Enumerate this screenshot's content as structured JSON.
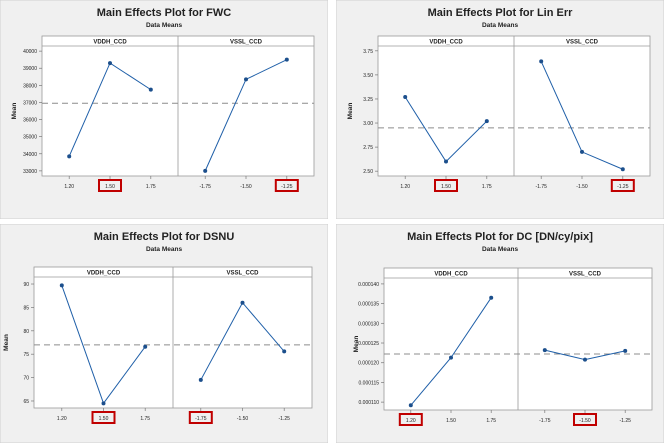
{
  "chart_data": [
    {
      "type": "line",
      "title": "Main Effects Plot for FWC",
      "subtitle": "Data Means",
      "ylabel": "Mean",
      "ylim": [
        32700,
        40300
      ],
      "yticks": [
        33000,
        34000,
        35000,
        36000,
        37000,
        38000,
        39000,
        40000
      ],
      "ytick_labels": [
        "33000",
        "34000",
        "35000",
        "36000",
        "37000",
        "38000",
        "39000",
        "40000"
      ],
      "reference_mean": 36950,
      "panels": [
        {
          "name": "VDDH_CCD",
          "categories": [
            "1.20",
            "1.50",
            "1.75"
          ],
          "values": [
            33850,
            39300,
            37750
          ],
          "highlighted": [
            "1.50"
          ]
        },
        {
          "name": "VSSL_CCD",
          "categories": [
            "-1.75",
            "-1.50",
            "-1.25"
          ],
          "values": [
            33000,
            38350,
            39500
          ],
          "highlighted": [
            "-1.25"
          ]
        }
      ]
    },
    {
      "type": "line",
      "title": "Main Effects Plot for Lin Err",
      "subtitle": "Data Means",
      "ylabel": "Mean",
      "ylim": [
        2.45,
        3.8
      ],
      "yticks": [
        2.5,
        2.75,
        3.0,
        3.25,
        3.5,
        3.75
      ],
      "ytick_labels": [
        "2.50",
        "2.75",
        "3.00",
        "3.25",
        "3.50",
        "3.75"
      ],
      "reference_mean": 2.95,
      "panels": [
        {
          "name": "VDDH_CCD",
          "categories": [
            "1.20",
            "1.50",
            "1.75"
          ],
          "values": [
            3.27,
            2.6,
            3.02
          ],
          "highlighted": [
            "1.50"
          ]
        },
        {
          "name": "VSSL_CCD",
          "categories": [
            "-1.75",
            "-1.50",
            "-1.25"
          ],
          "values": [
            3.64,
            2.7,
            2.52
          ],
          "highlighted": [
            "-1.25"
          ]
        }
      ]
    },
    {
      "type": "line",
      "title": "Main Effects Plot for DSNU",
      "subtitle": "Data Means",
      "ylabel": "Mean",
      "ylim": [
        63.5,
        91.5
      ],
      "yticks": [
        65,
        70,
        75,
        80,
        85,
        90
      ],
      "ytick_labels": [
        "65",
        "70",
        "75",
        "80",
        "85",
        "90"
      ],
      "reference_mean": 77,
      "panels": [
        {
          "name": "VDDH_CCD",
          "categories": [
            "1.20",
            "1.50",
            "1.75"
          ],
          "values": [
            89.7,
            64.5,
            76.6
          ],
          "highlighted": [
            "1.50"
          ]
        },
        {
          "name": "VSSL_CCD",
          "categories": [
            "-1.75",
            "-1.50",
            "-1.25"
          ],
          "values": [
            69.5,
            86,
            75.6
          ],
          "highlighted": [
            "-1.75"
          ]
        }
      ]
    },
    {
      "type": "line",
      "title": "Main Effects Plot for DC [DN/cy/pix]",
      "subtitle": "Data Means",
      "ylabel": "Mean",
      "ylim": [
        0.000108,
        0.0001415
      ],
      "yticks": [
        0.00011,
        0.000115,
        0.00012,
        0.000125,
        0.00013,
        0.000135,
        0.00014
      ],
      "ytick_labels": [
        "0.000110",
        "0.000115",
        "0.000120",
        "0.000125",
        "0.000130",
        "0.000135",
        "0.000140"
      ],
      "reference_mean": 0.0001222,
      "panels": [
        {
          "name": "VDDH_CCD",
          "categories": [
            "1.20",
            "1.50",
            "1.75"
          ],
          "values": [
            0.0001092,
            0.0001213,
            0.0001365
          ],
          "highlighted": [
            "1.20"
          ]
        },
        {
          "name": "VSSL_CCD",
          "categories": [
            "-1.75",
            "-1.50",
            "-1.25"
          ],
          "values": [
            0.0001232,
            0.0001208,
            0.000123
          ],
          "highlighted": [
            "-1.50"
          ]
        }
      ]
    }
  ],
  "colors": {
    "background": "#f0f0f0",
    "plot_area": "#ffffff",
    "line": "#1f5fa8",
    "marker": "#1c4f8c",
    "reference": "#8c8c8c",
    "highlight_box": "#c00000",
    "text": "#222222"
  }
}
